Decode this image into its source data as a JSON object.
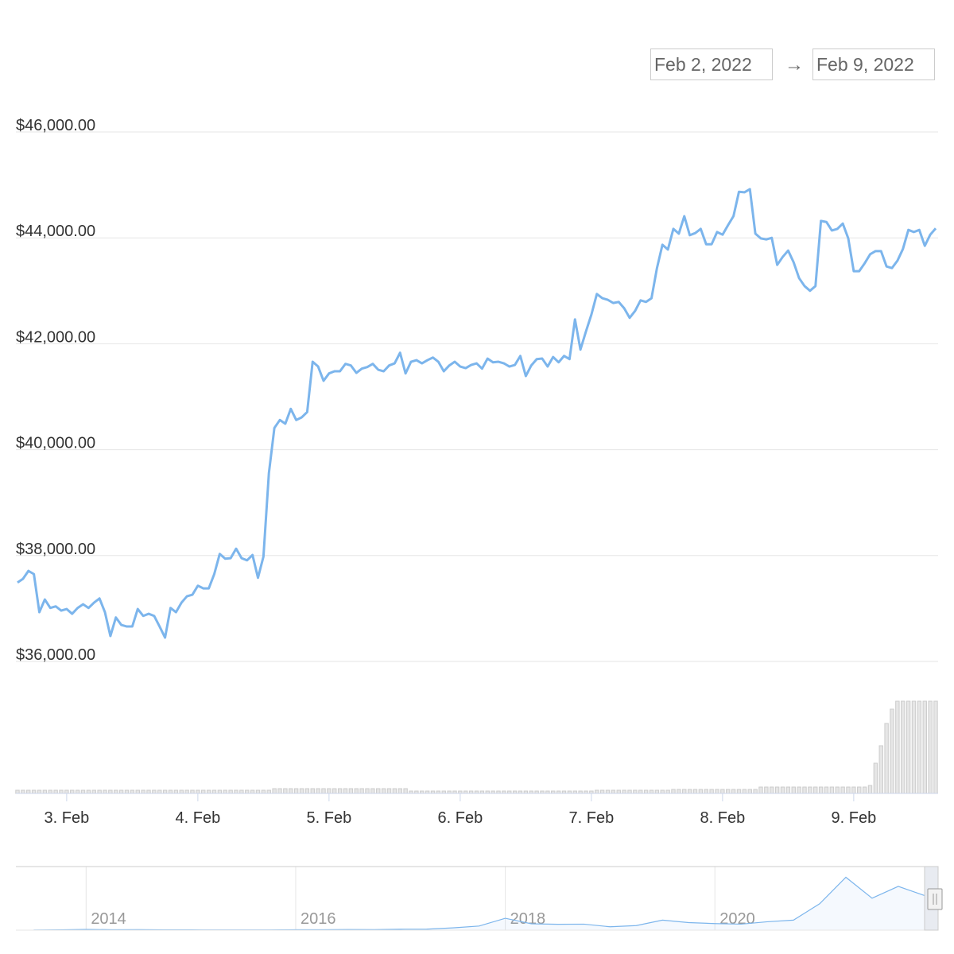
{
  "chart_data": {
    "type": "line",
    "range_selector": {
      "from": "Feb 2, 2022",
      "separator": "→",
      "to": "Feb 9, 2022"
    },
    "ylim": [
      36000,
      46000
    ],
    "yticks": [
      {
        "value": 36000,
        "label": "$36,000.00"
      },
      {
        "value": 38000,
        "label": "$38,000.00"
      },
      {
        "value": 40000,
        "label": "$40,000.00"
      },
      {
        "value": 42000,
        "label": "$42,000.00"
      },
      {
        "value": 44000,
        "label": "$44,000.00"
      },
      {
        "value": 46000,
        "label": "$46,000.00"
      }
    ],
    "xlim": [
      0,
      168
    ],
    "xticks": [
      {
        "value": 9,
        "label": "3. Feb"
      },
      {
        "value": 33,
        "label": "4. Feb"
      },
      {
        "value": 57,
        "label": "5. Feb"
      },
      {
        "value": 81,
        "label": "6. Feb"
      },
      {
        "value": 105,
        "label": "7. Feb"
      },
      {
        "value": 129,
        "label": "8. Feb"
      },
      {
        "value": 153,
        "label": "9. Feb"
      }
    ],
    "grid": true,
    "series": [
      {
        "color": "#7cb5ec",
        "values": [
          37490,
          37560,
          37710,
          37650,
          36930,
          37170,
          37010,
          37040,
          36960,
          36990,
          36900,
          37010,
          37080,
          37010,
          37110,
          37190,
          36930,
          36480,
          36830,
          36690,
          36660,
          36660,
          36990,
          36860,
          36900,
          36860,
          36660,
          36450,
          37010,
          36930,
          37110,
          37230,
          37260,
          37430,
          37380,
          37380,
          37650,
          38030,
          37940,
          37950,
          38130,
          37950,
          37910,
          38010,
          37580,
          37980,
          39560,
          40410,
          40560,
          40490,
          40770,
          40560,
          40610,
          40710,
          41660,
          41570,
          41300,
          41440,
          41480,
          41480,
          41620,
          41590,
          41450,
          41530,
          41560,
          41620,
          41510,
          41480,
          41590,
          41630,
          41830,
          41440,
          41660,
          41690,
          41630,
          41690,
          41740,
          41660,
          41480,
          41590,
          41660,
          41570,
          41540,
          41600,
          41630,
          41530,
          41720,
          41650,
          41660,
          41630,
          41570,
          41600,
          41770,
          41390,
          41590,
          41710,
          41720,
          41570,
          41750,
          41650,
          41770,
          41710,
          42460,
          41890,
          42230,
          42550,
          42940,
          42860,
          42830,
          42770,
          42790,
          42670,
          42490,
          42620,
          42820,
          42790,
          42860,
          43430,
          43870,
          43780,
          44170,
          44080,
          44410,
          44050,
          44090,
          44170,
          43880,
          43880,
          44110,
          44060,
          44240,
          44410,
          44870,
          44860,
          44920,
          44080,
          43990,
          43970,
          44000,
          43490,
          43640,
          43760,
          43540,
          43240,
          43090,
          43000,
          43090,
          44320,
          44300,
          44140,
          44170,
          44270,
          43990,
          43370,
          43370,
          43520,
          43690,
          43750,
          43750,
          43460,
          43430,
          43570,
          43790,
          44150,
          44110,
          44150,
          43850,
          44060,
          44180
        ]
      }
    ],
    "volume": {
      "color": "#cccccc",
      "ylim": [
        0,
        120
      ],
      "values": [
        4,
        4,
        4,
        4,
        4,
        4,
        4,
        4,
        4,
        4,
        4,
        4,
        4,
        4,
        4,
        4,
        4,
        4,
        4,
        4,
        4,
        4,
        4,
        4,
        4,
        4,
        4,
        4,
        4,
        4,
        4,
        4,
        4,
        4,
        4,
        4,
        4,
        4,
        4,
        4,
        4,
        4,
        4,
        4,
        4,
        4,
        4,
        6,
        6,
        6,
        6,
        6,
        6,
        6,
        6,
        6,
        6,
        6,
        6,
        6,
        6,
        6,
        6,
        6,
        6,
        6,
        6,
        6,
        6,
        6,
        6,
        6,
        3,
        3,
        3,
        3,
        3,
        3,
        3,
        3,
        3,
        3,
        3,
        3,
        3,
        3,
        3,
        3,
        3,
        3,
        3,
        3,
        3,
        3,
        3,
        3,
        3,
        3,
        3,
        3,
        3,
        3,
        3,
        3,
        3,
        3,
        4,
        4,
        4,
        4,
        4,
        4,
        4,
        4,
        4,
        4,
        4,
        4,
        4,
        4,
        5,
        5,
        5,
        5,
        5,
        5,
        5,
        5,
        5,
        5,
        5,
        5,
        5,
        5,
        5,
        5,
        8,
        8,
        8,
        8,
        8,
        8,
        8,
        8,
        8,
        8,
        8,
        8,
        8,
        8,
        8,
        8,
        8,
        8,
        8,
        8,
        10,
        38,
        60,
        88,
        106,
        116,
        116,
        116,
        116,
        116,
        116,
        116,
        116
      ]
    },
    "navigator": {
      "xlim": [
        2013.33,
        2022.13
      ],
      "ylim": [
        0,
        68000
      ],
      "xticks": [
        2014,
        2016,
        2018,
        2020
      ],
      "x": [
        2013.5,
        2013.75,
        2014,
        2014.25,
        2014.5,
        2014.75,
        2015,
        2015.25,
        2015.5,
        2015.75,
        2016,
        2016.25,
        2016.5,
        2016.75,
        2017,
        2017.25,
        2017.5,
        2017.75,
        2018,
        2018.25,
        2018.5,
        2018.75,
        2019,
        2019.25,
        2019.5,
        2019.75,
        2020,
        2020.25,
        2020.5,
        2020.75,
        2021,
        2021.25,
        2021.5,
        2021.75,
        2022
      ],
      "values": [
        120,
        300,
        800,
        500,
        600,
        380,
        300,
        240,
        260,
        240,
        430,
        420,
        650,
        620,
        1000,
        1100,
        2500,
        4500,
        13000,
        7000,
        6400,
        6600,
        3700,
        5000,
        11000,
        8300,
        7200,
        6600,
        9200,
        11000,
        29000,
        58000,
        35000,
        48000,
        38000
      ]
    }
  }
}
